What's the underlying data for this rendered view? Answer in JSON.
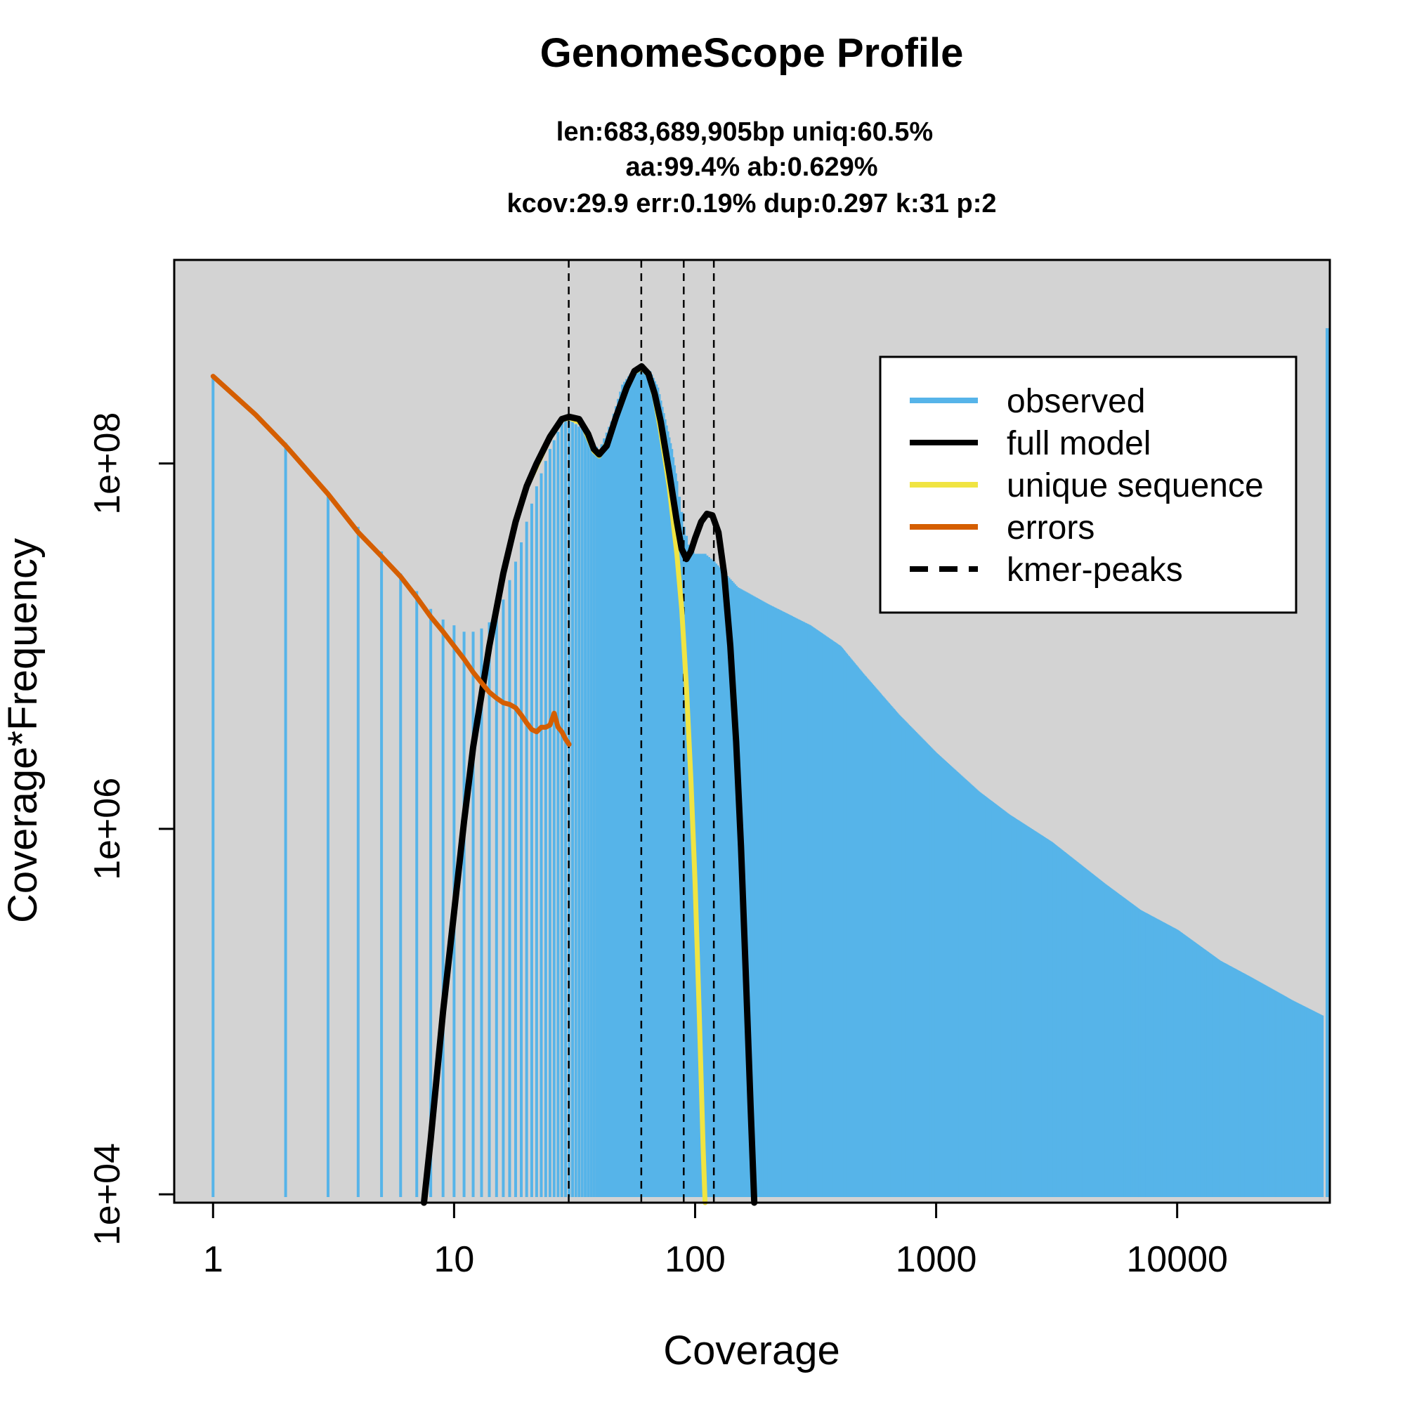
{
  "chart_data": {
    "type": "line",
    "title": "GenomeScope Profile",
    "subtitle_lines": [
      "len:683,689,905bp uniq:60.5%",
      "aa:99.4% ab:0.629%",
      "kcov:29.9 err:0.19%  dup:0.297  k:31 p:2"
    ],
    "xlabel": "Coverage",
    "ylabel": "Coverage*Frequency",
    "x_scale": "log",
    "y_scale": "log",
    "xlim": [
      0.69,
      43000
    ],
    "ylim": [
      9000,
      1300000000.0
    ],
    "x_ticks": [
      {
        "value": 1,
        "label": "1"
      },
      {
        "value": 10,
        "label": "10"
      },
      {
        "value": 100,
        "label": "100"
      },
      {
        "value": 1000,
        "label": "1000"
      },
      {
        "value": 10000,
        "label": "10000"
      }
    ],
    "y_ticks": [
      {
        "value": 10000,
        "label": "1e+04"
      },
      {
        "value": 1000000,
        "label": "1e+06"
      },
      {
        "value": 100000000,
        "label": "1e+08"
      }
    ],
    "background_color": "#d3d3d3",
    "legend": {
      "position": "top-right",
      "entries": [
        {
          "label": "observed",
          "color": "#56b4e9",
          "style": "solid"
        },
        {
          "label": "full model",
          "color": "#000000",
          "style": "solid"
        },
        {
          "label": "unique sequence",
          "color": "#f0e442",
          "style": "solid"
        },
        {
          "label": "errors",
          "color": "#d55e00",
          "style": "solid"
        },
        {
          "label": "kmer-peaks",
          "color": "#000000",
          "style": "dashed"
        }
      ]
    },
    "kmer_peaks": [
      29.9,
      59.8,
      89.7,
      119.6
    ],
    "series": [
      {
        "name": "observed",
        "color": "#56b4e9",
        "style": "bars",
        "points": [
          [
            1,
            300000000.0
          ],
          [
            2,
            130000000.0
          ],
          [
            3,
            70000000.0
          ],
          [
            4,
            45000000.0
          ],
          [
            5,
            33000000.0
          ],
          [
            6,
            25000000.0
          ],
          [
            7,
            20000000.0
          ],
          [
            8,
            16000000.0
          ],
          [
            9,
            14000000.0
          ],
          [
            10,
            13000000.0
          ],
          [
            11,
            12000000.0
          ],
          [
            12,
            12000000.0
          ],
          [
            13,
            12500000.0
          ],
          [
            14,
            13500000.0
          ],
          [
            15,
            15000000.0
          ],
          [
            16,
            18000000.0
          ],
          [
            17,
            23000000.0
          ],
          [
            18,
            29000000.0
          ],
          [
            19,
            37000000.0
          ],
          [
            20,
            48000000.0
          ],
          [
            22,
            75000000.0
          ],
          [
            25,
            120000000.0
          ],
          [
            28,
            165000000.0
          ],
          [
            30,
            175000000.0
          ],
          [
            35,
            150000000.0
          ],
          [
            40,
            118000000.0
          ],
          [
            45,
            170000000.0
          ],
          [
            50,
            270000000.0
          ],
          [
            55,
            320000000.0
          ],
          [
            60,
            340000000.0
          ],
          [
            65,
            320000000.0
          ],
          [
            70,
            260000000.0
          ],
          [
            80,
            120000000.0
          ],
          [
            90,
            45000000.0
          ],
          [
            95,
            34000000.0
          ],
          [
            100,
            32000000.0
          ],
          [
            110,
            32000000.0
          ],
          [
            120,
            29000000.0
          ],
          [
            150,
            21000000.0
          ],
          [
            200,
            17000000.0
          ],
          [
            300,
            13000000.0
          ],
          [
            400,
            10000000.0
          ],
          [
            500,
            7000000.0
          ],
          [
            700,
            4200000.0
          ],
          [
            1000,
            2600000.0
          ],
          [
            1500,
            1600000.0
          ],
          [
            2000,
            1200000.0
          ],
          [
            3000,
            850000.0
          ],
          [
            5000,
            500000.0
          ],
          [
            7000,
            360000.0
          ],
          [
            10000,
            280000.0
          ],
          [
            15000,
            190000.0
          ],
          [
            20000,
            155000.0
          ],
          [
            30000,
            115000.0
          ],
          [
            40000,
            95000.0
          ],
          [
            42000,
            550000000.0
          ]
        ]
      },
      {
        "name": "full model",
        "color": "#000000",
        "style": "solid",
        "points": [
          [
            7.5,
            9000
          ],
          [
            8,
            20000.0
          ],
          [
            9,
            100000.0
          ],
          [
            10,
            350000.0
          ],
          [
            11,
            1100000.0
          ],
          [
            12,
            2800000.0
          ],
          [
            14,
            10000000.0
          ],
          [
            16,
            25000000.0
          ],
          [
            18,
            48000000.0
          ],
          [
            20,
            75000000.0
          ],
          [
            22,
            100000000.0
          ],
          [
            25,
            140000000.0
          ],
          [
            28,
            175000000.0
          ],
          [
            30,
            180000000.0
          ],
          [
            33,
            175000000.0
          ],
          [
            36,
            145000000.0
          ],
          [
            38,
            120000000.0
          ],
          [
            40,
            112000000.0
          ],
          [
            43,
            125000000.0
          ],
          [
            47,
            180000000.0
          ],
          [
            52,
            260000000.0
          ],
          [
            56,
            320000000.0
          ],
          [
            60,
            340000000.0
          ],
          [
            64,
            310000000.0
          ],
          [
            68,
            240000000.0
          ],
          [
            72,
            170000000.0
          ],
          [
            78,
            90000000.0
          ],
          [
            84,
            48000000.0
          ],
          [
            88,
            34000000.0
          ],
          [
            92,
            30000000.0
          ],
          [
            96,
            33000000.0
          ],
          [
            100,
            39000000.0
          ],
          [
            106,
            48000000.0
          ],
          [
            112,
            53000000.0
          ],
          [
            118,
            52000000.0
          ],
          [
            125,
            42000000.0
          ],
          [
            132,
            25000000.0
          ],
          [
            140,
            10000000.0
          ],
          [
            148,
            3000000.0
          ],
          [
            155,
            800000.0
          ],
          [
            162,
            170000.0
          ],
          [
            170,
            30000.0
          ],
          [
            176,
            9000
          ]
        ]
      },
      {
        "name": "unique sequence",
        "color": "#f0e442",
        "style": "solid",
        "points": [
          [
            20,
            74000000.0
          ],
          [
            25,
            138000000.0
          ],
          [
            28,
            173000000.0
          ],
          [
            30,
            178000000.0
          ],
          [
            34,
            165000000.0
          ],
          [
            38,
            117000000.0
          ],
          [
            40,
            110000000.0
          ],
          [
            44,
            135000000.0
          ],
          [
            50,
            230000000.0
          ],
          [
            56,
            315000000.0
          ],
          [
            60,
            335000000.0
          ],
          [
            64,
            305000000.0
          ],
          [
            68,
            230000000.0
          ],
          [
            72,
            150000000.0
          ],
          [
            78,
            75000000.0
          ],
          [
            84,
            32000000.0
          ],
          [
            88,
            16000000.0
          ],
          [
            92,
            6000000.0
          ],
          [
            96,
            1900000.0
          ],
          [
            100,
            500000.0
          ],
          [
            104,
            100000.0
          ],
          [
            108,
            18000.0
          ],
          [
            110,
            9000
          ]
        ]
      },
      {
        "name": "errors",
        "color": "#d55e00",
        "style": "solid",
        "points": [
          [
            1,
            300000000.0
          ],
          [
            1.5,
            185000000.0
          ],
          [
            2,
            125000000.0
          ],
          [
            3,
            68000000.0
          ],
          [
            4,
            42000000.0
          ],
          [
            5,
            31000000.0
          ],
          [
            6,
            24000000.0
          ],
          [
            7,
            18500000.0
          ],
          [
            8,
            14500000.0
          ],
          [
            9,
            12000000.0
          ],
          [
            10,
            10000000.0
          ],
          [
            11,
            8500000.0
          ],
          [
            12,
            7200000.0
          ],
          [
            13,
            6300000.0
          ],
          [
            14,
            5600000.0
          ],
          [
            15,
            5200000.0
          ],
          [
            16,
            4900000.0
          ],
          [
            17,
            4800000.0
          ],
          [
            18,
            4600000.0
          ],
          [
            19,
            4200000.0
          ],
          [
            20,
            3800000.0
          ],
          [
            21,
            3500000.0
          ],
          [
            22,
            3400000.0
          ],
          [
            23,
            3600000.0
          ],
          [
            24,
            3600000.0
          ],
          [
            25,
            3700000.0
          ],
          [
            26,
            4300000.0
          ],
          [
            27,
            3600000.0
          ],
          [
            28,
            3400000.0
          ],
          [
            29,
            3100000.0
          ],
          [
            30,
            2900000.0
          ]
        ]
      }
    ]
  }
}
